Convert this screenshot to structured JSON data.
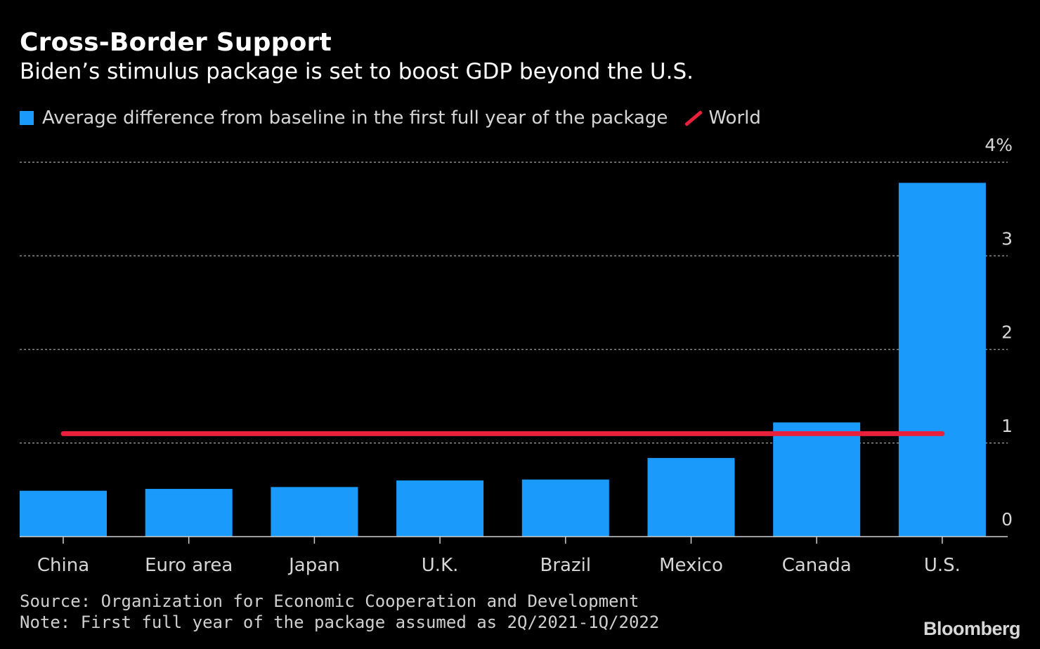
{
  "title": "Cross-Border Support",
  "subtitle": "Biden’s stimulus package is set to boost GDP beyond the U.S.",
  "legend": {
    "bar_label": "Average difference from baseline in the first full year of the package",
    "line_label": "World"
  },
  "footer": {
    "source": "Source: Organization for Economic Cooperation and Development",
    "note": "Note: First full year of the package assumed as 2Q/2021-1Q/2022"
  },
  "brand": "Bloomberg",
  "colors": {
    "bar": "#1a9bfc",
    "world_line": "#e8203c",
    "background": "#000000",
    "grid": "#8a8a8a"
  },
  "chart_data": {
    "type": "bar",
    "categories": [
      "China",
      "Euro area",
      "Japan",
      "U.K.",
      "Brazil",
      "Mexico",
      "Canada",
      "U.S."
    ],
    "series": [
      {
        "name": "Average difference from baseline in the first full year of the package",
        "values": [
          0.49,
          0.51,
          0.53,
          0.6,
          0.61,
          0.84,
          1.22,
          3.78
        ]
      }
    ],
    "reference_line": {
      "name": "World",
      "value": 1.1
    },
    "ylim": [
      0,
      4
    ],
    "yticks": [
      0,
      1,
      2,
      3,
      4
    ],
    "ytick_labels": [
      "0",
      "1",
      "2",
      "3",
      "4%"
    ],
    "y_axis_side": "right",
    "grid": true,
    "legend_position": "top-left"
  }
}
